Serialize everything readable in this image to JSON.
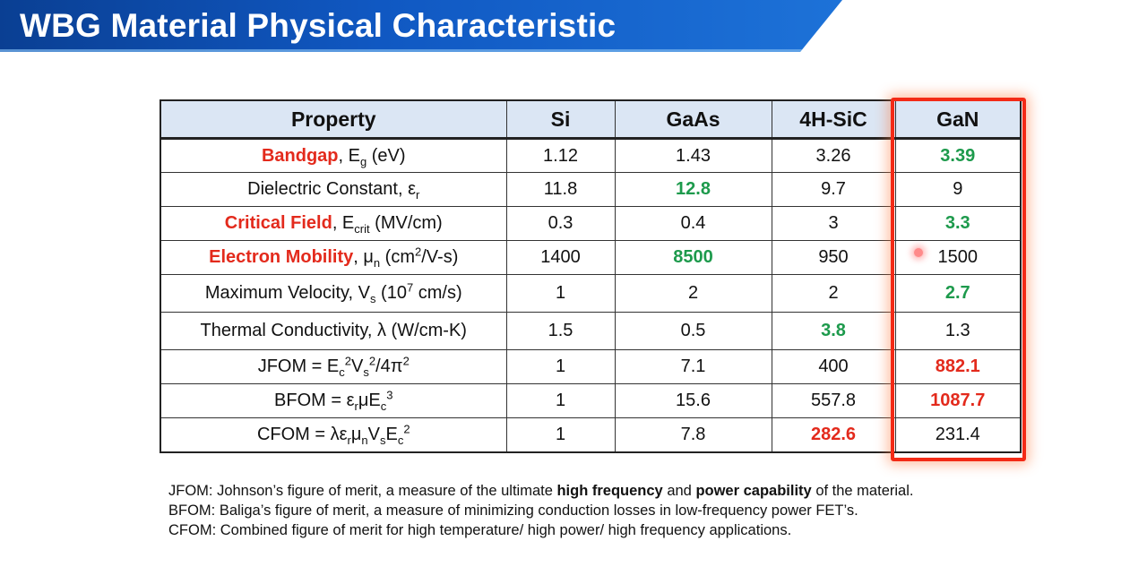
{
  "header": {
    "title": "WBG Material Physical Characteristic"
  },
  "table": {
    "columns": [
      "Property",
      "Si",
      "GaAs",
      "4H-SiC",
      "GaN"
    ],
    "rows": [
      {
        "prop_hl": "Bandgap",
        "prop_rest": ", E",
        "sub1": "g",
        "tail": " (eV)",
        "values": [
          "1.12",
          "1.43",
          "3.26",
          "3.39"
        ]
      },
      {
        "prop_rest": "Dielectric Constant, ε",
        "sub1": "r",
        "values": [
          "11.8",
          "12.8",
          "9.7",
          "9"
        ]
      },
      {
        "prop_hl": "Critical Field",
        "prop_rest": ", E",
        "sub1": "crit",
        "tail": " (MV/cm)",
        "values": [
          "0.3",
          "0.4",
          "3",
          "3.3"
        ]
      },
      {
        "prop_hl": "Electron Mobility",
        "prop_rest": ", μ",
        "sub1": "n",
        "tail": " (cm",
        "sup1": "2",
        "tail2": "/V-s)",
        "values": [
          "1400",
          "8500",
          "950",
          "1500"
        ]
      },
      {
        "prop_rest": "Maximum Velocity, V",
        "sub1": "s",
        "tail": " (10",
        "sup1": "7",
        "tail2": " cm/s)",
        "values": [
          "1",
          "2",
          "2",
          "2.7"
        ]
      },
      {
        "prop_rest": "Thermal Conductivity, λ (W/cm-K)",
        "values": [
          "1.5",
          "0.5",
          "3.8",
          "1.3"
        ]
      },
      {
        "prop_rest": "JFOM = E",
        "sub1": "c",
        "sup1": "2",
        "tail": "V",
        "sub2": "s",
        "sup2": "2",
        "tail2": "/4π",
        "sup3": "2",
        "values": [
          "1",
          "7.1",
          "400",
          "882.1"
        ]
      },
      {
        "prop_rest": "BFOM = ε",
        "sub1": "r",
        "tail": "μE",
        "sub2": "c",
        "sup2": "3",
        "values": [
          "1",
          "15.6",
          "557.8",
          "1087.7"
        ]
      },
      {
        "prop_rest": "CFOM = λε",
        "sub1": "r",
        "tail": "μ",
        "sub2": "n",
        "tail2": "V",
        "sub3": "s",
        "tail3": "E",
        "sub4": "c",
        "sup4": "2",
        "values": [
          "1",
          "7.8",
          "282.6",
          "231.4"
        ]
      }
    ]
  },
  "notes": {
    "jfom_prefix": "JFOM:  Johnson’s figure of merit, a measure of the ultimate ",
    "jfom_bold1": "high frequency",
    "jfom_mid": " and ",
    "jfom_bold2": "power capability",
    "jfom_suffix": " of the material.",
    "bfom": "BFOM: Baliga’s figure of merit, a measure of minimizing conduction losses in low-frequency power FET’s.",
    "cfom": "CFOM: Combined figure of merit for high temperature/ high power/ high frequency applications."
  },
  "colors": {
    "header_bg": "#1058c2",
    "highlight_red": "#e32a1c",
    "best_green": "#1d9a4c",
    "gan_box": "#f32a16"
  }
}
